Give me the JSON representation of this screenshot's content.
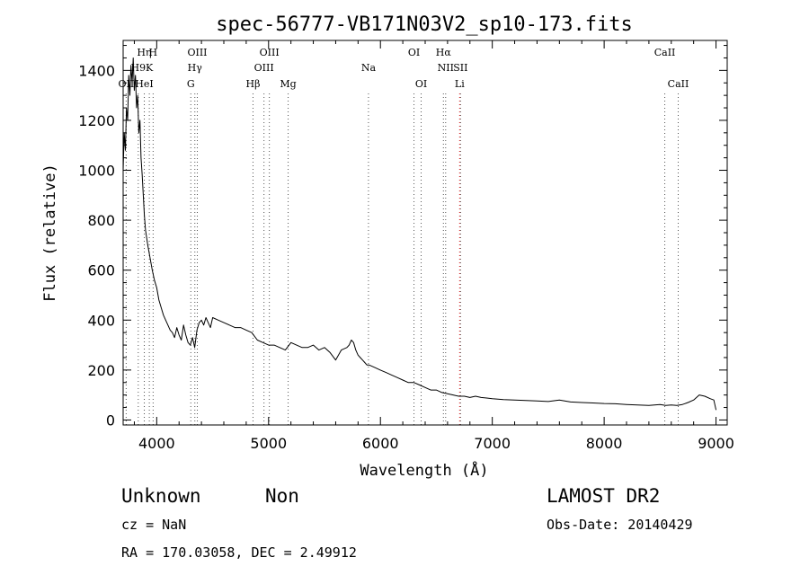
{
  "chart_data": {
    "type": "line",
    "title": "spec-56777-VB171N03V2_sp10-173.fits",
    "xlabel": "Wavelength (Å)",
    "ylabel": "Flux (relative)",
    "xlim": [
      3700,
      9100
    ],
    "ylim": [
      -20,
      1520
    ],
    "xticks": [
      4000,
      5000,
      6000,
      7000,
      8000,
      9000
    ],
    "yticks": [
      0,
      200,
      400,
      600,
      800,
      1000,
      1200,
      1400
    ],
    "grid": false,
    "line_color": "#000000",
    "series": [
      {
        "x": [
          3700,
          3710,
          3720,
          3730,
          3740,
          3750,
          3760,
          3770,
          3780,
          3790,
          3800,
          3810,
          3820,
          3830,
          3840,
          3850,
          3860,
          3870,
          3880,
          3890,
          3900,
          3920,
          3940,
          3960,
          3980,
          4000,
          4020,
          4040,
          4060,
          4080,
          4100,
          4120,
          4140,
          4160,
          4180,
          4200,
          4220,
          4240,
          4260,
          4280,
          4300,
          4320,
          4340,
          4360,
          4380,
          4400,
          4420,
          4440,
          4460,
          4480,
          4500,
          4550,
          4600,
          4650,
          4700,
          4750,
          4800,
          4850,
          4900,
          4950,
          5000,
          5050,
          5100,
          5150,
          5200,
          5250,
          5300,
          5350,
          5400,
          5450,
          5500,
          5550,
          5600,
          5650,
          5700,
          5720,
          5740,
          5760,
          5780,
          5800,
          5820,
          5840,
          5860,
          5880,
          5900,
          5950,
          6000,
          6050,
          6100,
          6150,
          6200,
          6250,
          6300,
          6350,
          6400,
          6450,
          6500,
          6550,
          6600,
          6650,
          6700,
          6750,
          6800,
          6850,
          6900,
          6950,
          7000,
          7100,
          7200,
          7300,
          7400,
          7500,
          7600,
          7700,
          7800,
          7900,
          8000,
          8100,
          8200,
          8300,
          8400,
          8500,
          8550,
          8600,
          8650,
          8700,
          8750,
          8800,
          8850,
          8900,
          8950,
          8980,
          9000
        ],
        "y": [
          1000,
          1150,
          1080,
          1250,
          1200,
          1380,
          1300,
          1420,
          1350,
          1450,
          1320,
          1380,
          1250,
          1300,
          1150,
          1200,
          1050,
          980,
          900,
          820,
          760,
          700,
          650,
          600,
          560,
          530,
          480,
          450,
          420,
          400,
          380,
          360,
          350,
          330,
          370,
          340,
          320,
          380,
          340,
          310,
          300,
          330,
          290,
          360,
          390,
          400,
          380,
          410,
          390,
          370,
          410,
          400,
          390,
          380,
          370,
          370,
          360,
          350,
          320,
          310,
          300,
          300,
          290,
          280,
          310,
          300,
          290,
          290,
          300,
          280,
          290,
          270,
          240,
          280,
          290,
          300,
          320,
          310,
          280,
          260,
          250,
          240,
          230,
          220,
          220,
          210,
          200,
          190,
          180,
          170,
          160,
          150,
          150,
          140,
          130,
          120,
          120,
          110,
          105,
          100,
          95,
          95,
          90,
          95,
          90,
          88,
          85,
          82,
          80,
          78,
          76,
          74,
          80,
          72,
          70,
          68,
          66,
          65,
          62,
          60,
          58,
          62,
          58,
          60,
          58,
          62,
          70,
          80,
          100,
          95,
          85,
          80,
          40
        ]
      }
    ],
    "lines": [
      {
        "label": "OII",
        "x": 3727,
        "row": 3,
        "color": "#555555"
      },
      {
        "label": "H9",
        "x": 3835,
        "row": 2,
        "color": "#555555"
      },
      {
        "label": "Hη",
        "x": 3889,
        "row": 1,
        "color": "#555555"
      },
      {
        "label": "HeI",
        "x": 3889,
        "row": 3,
        "color": "#555555"
      },
      {
        "label": "K",
        "x": 3934,
        "row": 2,
        "color": "#555555"
      },
      {
        "label": "H",
        "x": 3968,
        "row": 1,
        "color": "#555555"
      },
      {
        "label": "OIII",
        "x": 4363,
        "row": 1,
        "color": "#555555"
      },
      {
        "label": "Hγ",
        "x": 4341,
        "row": 2,
        "color": "#555555"
      },
      {
        "label": "G",
        "x": 4305,
        "row": 3,
        "color": "#555555"
      },
      {
        "label": "Hβ",
        "x": 4861,
        "row": 3,
        "color": "#555555"
      },
      {
        "label": "OIII",
        "x": 4959,
        "row": 2,
        "color": "#555555"
      },
      {
        "label": "OIII",
        "x": 5007,
        "row": 1,
        "color": "#555555"
      },
      {
        "label": "Mg",
        "x": 5175,
        "row": 3,
        "color": "#555555"
      },
      {
        "label": "Na",
        "x": 5893,
        "row": 2,
        "color": "#555555"
      },
      {
        "label": "OI",
        "x": 6300,
        "row": 1,
        "color": "#555555"
      },
      {
        "label": "OI",
        "x": 6364,
        "row": 3,
        "color": "#555555"
      },
      {
        "label": "Hα",
        "x": 6563,
        "row": 1,
        "color": "#555555"
      },
      {
        "label": "NII",
        "x": 6583,
        "row": 2,
        "color": "#555555"
      },
      {
        "label": "SII",
        "x": 6716,
        "row": 2,
        "color": "#555555"
      },
      {
        "label": "Li",
        "x": 6708,
        "row": 3,
        "color": "#d62020"
      },
      {
        "label": "CaII",
        "x": 8542,
        "row": 1,
        "color": "#555555"
      },
      {
        "label": "CaII",
        "x": 8662,
        "row": 3,
        "color": "#555555"
      }
    ]
  },
  "info": {
    "class_label": "Unknown",
    "subclass_label": "Non",
    "survey": "LAMOST DR2",
    "cz": "cz = NaN",
    "obs_date": "Obs-Date: 20140429",
    "coords": "RA = 170.03058, DEC =    2.49912"
  }
}
